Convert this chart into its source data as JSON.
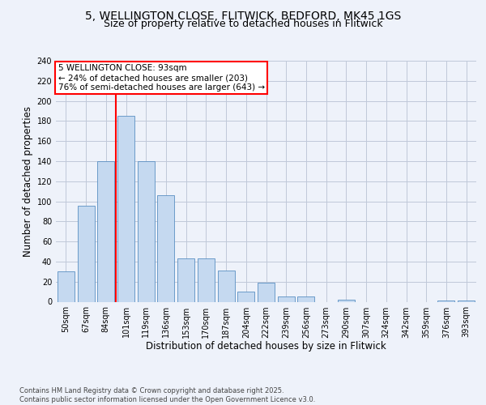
{
  "title": "5, WELLINGTON CLOSE, FLITWICK, BEDFORD, MK45 1GS",
  "subtitle": "Size of property relative to detached houses in Flitwick",
  "xlabel": "Distribution of detached houses by size in Flitwick",
  "ylabel": "Number of detached properties",
  "categories": [
    "50sqm",
    "67sqm",
    "84sqm",
    "101sqm",
    "119sqm",
    "136sqm",
    "153sqm",
    "170sqm",
    "187sqm",
    "204sqm",
    "222sqm",
    "239sqm",
    "256sqm",
    "273sqm",
    "290sqm",
    "307sqm",
    "324sqm",
    "342sqm",
    "359sqm",
    "376sqm",
    "393sqm"
  ],
  "values": [
    30,
    96,
    140,
    185,
    140,
    106,
    43,
    43,
    31,
    10,
    19,
    5,
    5,
    0,
    2,
    0,
    0,
    0,
    0,
    1,
    1
  ],
  "bar_color": "#c5d9f0",
  "bar_edge_color": "#5a8fc2",
  "grid_color": "#c0c8d8",
  "property_label": "5 WELLINGTON CLOSE: 93sqm",
  "annotation_line1": "← 24% of detached houses are smaller (203)",
  "annotation_line2": "76% of semi-detached houses are larger (643) →",
  "box_color": "white",
  "box_edge_color": "red",
  "vline_color": "red",
  "vline_x": 2.5,
  "ylim": [
    0,
    240
  ],
  "yticks": [
    0,
    20,
    40,
    60,
    80,
    100,
    120,
    140,
    160,
    180,
    200,
    220,
    240
  ],
  "footer": "Contains HM Land Registry data © Crown copyright and database right 2025.\nContains public sector information licensed under the Open Government Licence v3.0.",
  "bg_color": "#eef2fa",
  "title_fontsize": 10,
  "subtitle_fontsize": 9,
  "axis_label_fontsize": 8.5,
  "tick_fontsize": 7,
  "annotation_fontsize": 7.5,
  "footer_fontsize": 6
}
